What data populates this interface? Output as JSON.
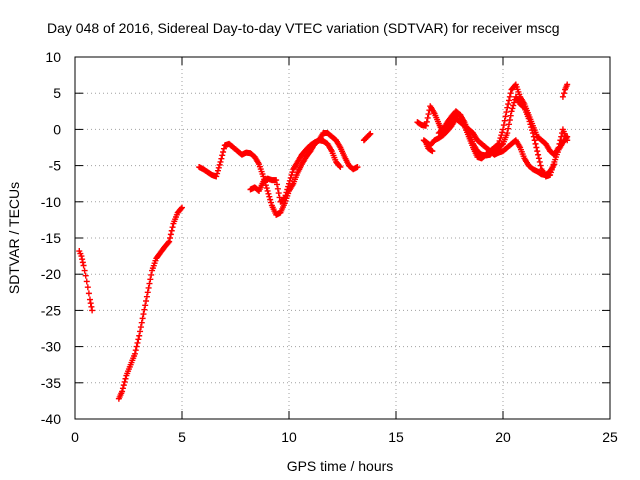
{
  "chart_data": {
    "type": "scatter",
    "title": "Day 048 of 2016, Sidereal Day-to-day VTEC variation (SDTVAR) for receiver mscg",
    "xlabel": "GPS time / hours",
    "ylabel": "SDTVAR / TECUs",
    "xlim": [
      0,
      25
    ],
    "ylim": [
      -40,
      10
    ],
    "xticks": [
      "0",
      "5",
      "10",
      "15",
      "20",
      "25"
    ],
    "yticks": [
      "-40",
      "-35",
      "-30",
      "-25",
      "-20",
      "-15",
      "-10",
      "-5",
      "0",
      "5",
      "10"
    ],
    "xtick_values": [
      0,
      5,
      10,
      15,
      20,
      25
    ],
    "ytick_values": [
      -40,
      -35,
      -30,
      -25,
      -20,
      -15,
      -10,
      -5,
      0,
      5,
      10
    ],
    "grid": true,
    "marker": "plus",
    "color": "#ff0000",
    "series": [
      {
        "segments": [
          [
            [
              0.2,
              -16.8
            ],
            [
              0.3,
              -17.5
            ],
            [
              0.4,
              -18.8
            ],
            [
              0.5,
              -20.2
            ],
            [
              0.6,
              -21.8
            ],
            [
              0.7,
              -23.5
            ],
            [
              0.8,
              -25
            ]
          ],
          [
            [
              2.05,
              -37.2
            ],
            [
              2.2,
              -36.2
            ],
            [
              2.4,
              -34
            ],
            [
              2.6,
              -32.5
            ],
            [
              2.8,
              -31
            ],
            [
              3.0,
              -28.5
            ],
            [
              3.2,
              -25.5
            ],
            [
              3.4,
              -22.5
            ],
            [
              3.6,
              -19.5
            ],
            [
              3.8,
              -17.8
            ],
            [
              4.0,
              -17
            ],
            [
              4.2,
              -16.2
            ],
            [
              4.4,
              -15.5
            ],
            [
              4.6,
              -13
            ],
            [
              4.8,
              -11.5
            ],
            [
              5.0,
              -10.8
            ]
          ],
          [
            [
              5.8,
              -5.2
            ],
            [
              6.0,
              -5.5
            ],
            [
              6.2,
              -5.9
            ],
            [
              6.4,
              -6.3
            ],
            [
              6.6,
              -6.5
            ],
            [
              6.8,
              -4.5
            ],
            [
              7.0,
              -2.2
            ],
            [
              7.2,
              -2.0
            ],
            [
              7.4,
              -2.5
            ],
            [
              7.6,
              -3.0
            ],
            [
              7.8,
              -3.5
            ],
            [
              8.0,
              -3.2
            ],
            [
              8.2,
              -3.3
            ],
            [
              8.4,
              -3.8
            ],
            [
              8.6,
              -4.8
            ],
            [
              8.8,
              -6.5
            ],
            [
              9.0,
              -8.5
            ],
            [
              9.2,
              -10.5
            ],
            [
              9.4,
              -11.8
            ],
            [
              9.6,
              -11.5
            ],
            [
              9.8,
              -10.2
            ],
            [
              10.0,
              -8.5
            ],
            [
              10.2,
              -7.5
            ],
            [
              10.4,
              -6.0
            ],
            [
              10.6,
              -4.8
            ],
            [
              10.8,
              -3.8
            ],
            [
              11.0,
              -3.0
            ],
            [
              11.2,
              -2.0
            ],
            [
              11.4,
              -1.5
            ],
            [
              11.6,
              -0.5
            ],
            [
              11.8,
              -0.5
            ],
            [
              12.0,
              -1.0
            ],
            [
              12.2,
              -1.5
            ],
            [
              12.4,
              -2.5
            ],
            [
              12.6,
              -3.8
            ],
            [
              12.8,
              -5.0
            ],
            [
              13.0,
              -5.5
            ],
            [
              13.2,
              -5.2
            ]
          ],
          [
            [
              8.2,
              -8.3
            ],
            [
              8.4,
              -8.0
            ],
            [
              8.6,
              -8.5
            ],
            [
              8.8,
              -7.2
            ],
            [
              9.0,
              -6.8
            ],
            [
              9.2,
              -7.0
            ],
            [
              9.4,
              -7.0
            ],
            [
              9.6,
              -10.0
            ],
            [
              9.8,
              -9.5
            ],
            [
              10.0,
              -7.5
            ],
            [
              10.2,
              -5.5
            ],
            [
              10.4,
              -4.5
            ],
            [
              10.6,
              -3.5
            ],
            [
              10.8,
              -2.8
            ],
            [
              11.0,
              -2.2
            ],
            [
              11.2,
              -1.8
            ],
            [
              11.4,
              -1.5
            ],
            [
              11.6,
              -1.6
            ],
            [
              11.8,
              -2.0
            ],
            [
              12.0,
              -3.0
            ],
            [
              12.2,
              -4.5
            ],
            [
              12.4,
              -5.2
            ]
          ],
          [
            [
              13.5,
              -1.5
            ],
            [
              13.8,
              -0.6
            ]
          ],
          [
            [
              16.0,
              1.0
            ],
            [
              16.2,
              0.6
            ],
            [
              16.4,
              0.5
            ],
            [
              16.6,
              3.2
            ],
            [
              16.8,
              2.2
            ],
            [
              17.0,
              0.8
            ],
            [
              17.2,
              -0.5
            ],
            [
              17.4,
              0.5
            ],
            [
              17.6,
              1.5
            ],
            [
              17.8,
              2.2
            ],
            [
              18.0,
              2.0
            ],
            [
              18.2,
              1.0
            ],
            [
              18.4,
              -0.5
            ],
            [
              18.6,
              -2.0
            ],
            [
              18.8,
              -3.0
            ],
            [
              19.0,
              -3.5
            ],
            [
              19.2,
              -3.6
            ],
            [
              19.4,
              -3.5
            ],
            [
              19.6,
              -2.8
            ],
            [
              19.8,
              -2.5
            ],
            [
              20.0,
              -2.0
            ],
            [
              20.2,
              -0.5
            ],
            [
              20.4,
              2.5
            ],
            [
              20.6,
              4.5
            ],
            [
              20.8,
              3.5
            ],
            [
              21.0,
              3.0
            ],
            [
              21.2,
              1.5
            ],
            [
              21.4,
              -0.5
            ],
            [
              21.6,
              -3.0
            ],
            [
              21.8,
              -5.5
            ],
            [
              22.0,
              -6.5
            ],
            [
              22.2,
              -6.3
            ],
            [
              22.4,
              -4.5
            ],
            [
              22.6,
              -2.8
            ],
            [
              22.8,
              -1.8
            ],
            [
              23.0,
              -1.0
            ]
          ],
          [
            [
              16.3,
              -1.5
            ],
            [
              16.6,
              -2.2
            ],
            [
              16.8,
              -1.5
            ],
            [
              17.0,
              -1.2
            ],
            [
              17.2,
              -0.8
            ],
            [
              17.4,
              -0.2
            ],
            [
              17.6,
              0.5
            ],
            [
              17.8,
              1.5
            ],
            [
              18.0,
              1.0
            ],
            [
              18.2,
              0.5
            ],
            [
              18.4,
              0.0
            ],
            [
              18.6,
              -0.5
            ],
            [
              18.8,
              -1.5
            ],
            [
              19.0,
              -2.0
            ],
            [
              19.2,
              -2.5
            ],
            [
              19.4,
              -3.0
            ],
            [
              19.6,
              -3.5
            ],
            [
              19.8,
              -3.2
            ],
            [
              20.0,
              -3.0
            ],
            [
              20.2,
              -2.5
            ],
            [
              20.4,
              -2.0
            ],
            [
              20.6,
              -1.5
            ],
            [
              20.8,
              -2.5
            ],
            [
              21.0,
              -4.0
            ],
            [
              21.2,
              -5.0
            ],
            [
              21.4,
              -5.5
            ],
            [
              21.6,
              -5.8
            ],
            [
              21.8,
              -6.2
            ],
            [
              22.0,
              -6.3
            ],
            [
              22.2,
              -5.8
            ],
            [
              22.4,
              -4.8
            ]
          ],
          [
            [
              17.0,
              -0.5
            ],
            [
              17.2,
              0.0
            ],
            [
              17.4,
              1.0
            ],
            [
              17.6,
              1.8
            ],
            [
              17.8,
              2.5
            ],
            [
              18.0,
              2.0
            ],
            [
              18.2,
              0.5
            ],
            [
              18.4,
              -1.0
            ],
            [
              18.6,
              -2.5
            ],
            [
              18.8,
              -3.8
            ],
            [
              19.0,
              -4.0
            ],
            [
              19.2,
              -3.5
            ],
            [
              19.4,
              -3.0
            ],
            [
              19.6,
              -2.5
            ],
            [
              19.8,
              -2.0
            ],
            [
              20.0,
              0.0
            ],
            [
              20.2,
              3.0
            ],
            [
              20.4,
              5.5
            ],
            [
              20.6,
              6.2
            ],
            [
              20.8,
              4.5
            ],
            [
              21.0,
              3.5
            ],
            [
              21.2,
              2.0
            ],
            [
              21.4,
              0.5
            ],
            [
              21.6,
              -1.0
            ],
            [
              21.8,
              -1.5
            ],
            [
              22.0,
              -2.0
            ],
            [
              22.2,
              -3.0
            ],
            [
              22.4,
              -3.5
            ],
            [
              22.6,
              -2.5
            ],
            [
              22.8,
              0.0
            ],
            [
              23.0,
              -1.5
            ]
          ],
          [
            [
              16.4,
              -1.8
            ],
            [
              16.5,
              -2.6
            ],
            [
              16.7,
              -3.0
            ]
          ],
          [
            [
              22.8,
              4.5
            ],
            [
              22.9,
              5.5
            ],
            [
              23.0,
              6.2
            ]
          ]
        ]
      }
    ]
  }
}
